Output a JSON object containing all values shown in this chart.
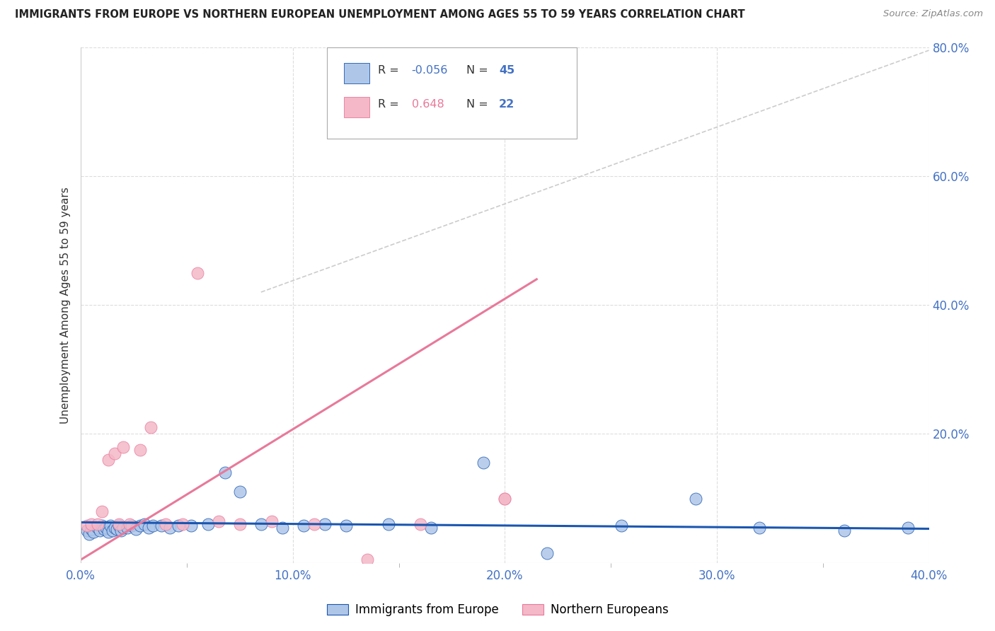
{
  "title": "IMMIGRANTS FROM EUROPE VS NORTHERN EUROPEAN UNEMPLOYMENT AMONG AGES 55 TO 59 YEARS CORRELATION CHART",
  "source": "Source: ZipAtlas.com",
  "ylabel_left": "Unemployment Among Ages 55 to 59 years",
  "xlim": [
    0.0,
    0.4
  ],
  "ylim": [
    0.0,
    0.8
  ],
  "xtick_labels": [
    "0.0%",
    "",
    "10.0%",
    "",
    "20.0%",
    "",
    "30.0%",
    "",
    "40.0%"
  ],
  "xtick_vals": [
    0.0,
    0.05,
    0.1,
    0.15,
    0.2,
    0.25,
    0.3,
    0.35,
    0.4
  ],
  "xtick_visible": [
    true,
    false,
    true,
    false,
    true,
    false,
    true,
    false,
    true
  ],
  "ytick_labels": [
    "20.0%",
    "40.0%",
    "60.0%",
    "80.0%"
  ],
  "ytick_vals": [
    0.2,
    0.4,
    0.6,
    0.8
  ],
  "blue_scatter_x": [
    0.003,
    0.004,
    0.005,
    0.006,
    0.008,
    0.009,
    0.01,
    0.011,
    0.012,
    0.013,
    0.014,
    0.015,
    0.016,
    0.017,
    0.018,
    0.019,
    0.02,
    0.022,
    0.024,
    0.026,
    0.028,
    0.03,
    0.032,
    0.034,
    0.038,
    0.042,
    0.046,
    0.052,
    0.06,
    0.068,
    0.075,
    0.085,
    0.095,
    0.105,
    0.115,
    0.125,
    0.145,
    0.165,
    0.19,
    0.22,
    0.255,
    0.29,
    0.32,
    0.36,
    0.39
  ],
  "blue_scatter_y": [
    0.05,
    0.045,
    0.052,
    0.048,
    0.055,
    0.05,
    0.058,
    0.052,
    0.055,
    0.048,
    0.058,
    0.05,
    0.055,
    0.052,
    0.058,
    0.05,
    0.055,
    0.055,
    0.058,
    0.052,
    0.058,
    0.06,
    0.055,
    0.058,
    0.058,
    0.055,
    0.058,
    0.058,
    0.06,
    0.14,
    0.11,
    0.06,
    0.055,
    0.058,
    0.06,
    0.058,
    0.06,
    0.055,
    0.155,
    0.015,
    0.058,
    0.1,
    0.055,
    0.05,
    0.055
  ],
  "pink_scatter_x": [
    0.003,
    0.005,
    0.008,
    0.01,
    0.013,
    0.016,
    0.018,
    0.02,
    0.023,
    0.028,
    0.033,
    0.04,
    0.048,
    0.055,
    0.065,
    0.075,
    0.09,
    0.11,
    0.135,
    0.16,
    0.2,
    0.2
  ],
  "pink_scatter_y": [
    0.058,
    0.06,
    0.06,
    0.08,
    0.16,
    0.17,
    0.06,
    0.18,
    0.06,
    0.175,
    0.21,
    0.06,
    0.06,
    0.45,
    0.065,
    0.06,
    0.065,
    0.06,
    0.005,
    0.06,
    0.1,
    0.1
  ],
  "blue_line_x": [
    0.0,
    0.4
  ],
  "blue_line_y": [
    0.063,
    0.053
  ],
  "pink_line_x": [
    0.0,
    0.215
  ],
  "pink_line_y": [
    0.005,
    0.44
  ],
  "gray_dash_line_x": [
    0.085,
    0.4
  ],
  "gray_dash_line_y": [
    0.42,
    0.795
  ],
  "background_color": "#ffffff",
  "grid_color": "#dddddd",
  "blue_scatter_color": "#aec6e8",
  "pink_scatter_color": "#f4b8c8",
  "blue_line_color": "#1a56b0",
  "pink_line_color": "#e8799a",
  "gray_dash_color": "#cccccc",
  "title_color": "#222222",
  "axis_label_color": "#333333",
  "tick_color": "#4472c4",
  "right_tick_color": "#4472c4",
  "legend_R_color_blue": "#4472c4",
  "legend_R_color_pink": "#e8799a",
  "legend_N_color": "#4472c4",
  "legend_label_blue": "Immigrants from Europe",
  "legend_label_pink": "Northern Europeans",
  "legend_R_blue": "-0.056",
  "legend_R_pink": "0.648",
  "legend_N_blue": "45",
  "legend_N_pink": "22"
}
